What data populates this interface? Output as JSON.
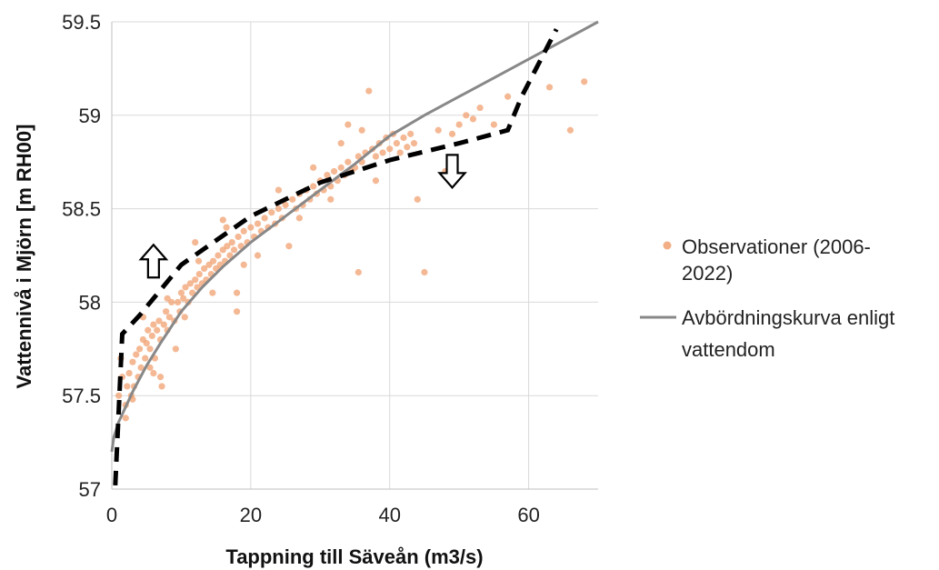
{
  "chart_data": {
    "type": "scatter",
    "xlabel": "Tappning till Säveån (m3/s)",
    "ylabel": "Vattennivå i Mjörn [m RH00]",
    "xlim": [
      0,
      70
    ],
    "ylim": [
      57,
      59.5
    ],
    "x_ticks": [
      "0",
      "20",
      "40",
      "60"
    ],
    "y_ticks": [
      "57",
      "57.5",
      "58",
      "58.5",
      "59",
      "59.5"
    ],
    "grid": true,
    "legend_position": "right",
    "series": [
      {
        "name_lines": [
          "Observationer (2006-",
          "2022)"
        ],
        "kind": "scatter",
        "color": "#f0a070",
        "points": [
          [
            1.0,
            57.5
          ],
          [
            1.3,
            57.7
          ],
          [
            1.5,
            57.6
          ],
          [
            2.0,
            57.45
          ],
          [
            2.2,
            57.55
          ],
          [
            2.5,
            57.62
          ],
          [
            2.8,
            57.5
          ],
          [
            3.0,
            57.68
          ],
          [
            3.2,
            57.55
          ],
          [
            3.5,
            57.72
          ],
          [
            3.8,
            57.6
          ],
          [
            4.0,
            57.75
          ],
          [
            4.2,
            57.65
          ],
          [
            4.5,
            57.8
          ],
          [
            4.8,
            57.7
          ],
          [
            5.0,
            57.78
          ],
          [
            5.2,
            57.85
          ],
          [
            5.5,
            57.75
          ],
          [
            5.8,
            57.82
          ],
          [
            6.0,
            57.88
          ],
          [
            6.2,
            57.7
          ],
          [
            6.5,
            57.85
          ],
          [
            6.8,
            57.9
          ],
          [
            7.0,
            57.8
          ],
          [
            7.2,
            57.55
          ],
          [
            7.5,
            57.88
          ],
          [
            7.8,
            57.95
          ],
          [
            8.0,
            57.85
          ],
          [
            8.3,
            57.92
          ],
          [
            8.6,
            58.0
          ],
          [
            9.0,
            57.9
          ],
          [
            9.2,
            57.75
          ],
          [
            9.5,
            58.0
          ],
          [
            9.8,
            57.95
          ],
          [
            10.0,
            58.05
          ],
          [
            10.3,
            58.02
          ],
          [
            10.6,
            58.08
          ],
          [
            11.0,
            58.0
          ],
          [
            11.3,
            58.1
          ],
          [
            11.6,
            58.05
          ],
          [
            12.0,
            58.12
          ],
          [
            12.3,
            58.08
          ],
          [
            12.6,
            58.15
          ],
          [
            13.0,
            58.1
          ],
          [
            13.3,
            58.18
          ],
          [
            13.6,
            58.12
          ],
          [
            14.0,
            58.2
          ],
          [
            14.3,
            58.15
          ],
          [
            14.6,
            58.22
          ],
          [
            15.0,
            58.18
          ],
          [
            15.3,
            58.25
          ],
          [
            15.6,
            58.2
          ],
          [
            16.0,
            58.28
          ],
          [
            16.3,
            58.22
          ],
          [
            16.6,
            58.3
          ],
          [
            17.0,
            58.25
          ],
          [
            17.3,
            58.32
          ],
          [
            17.6,
            58.28
          ],
          [
            18.0,
            58.05
          ],
          [
            18.0,
            57.95
          ],
          [
            18.2,
            58.35
          ],
          [
            18.6,
            58.3
          ],
          [
            19.0,
            58.38
          ],
          [
            19.5,
            58.32
          ],
          [
            20.0,
            58.4
          ],
          [
            20.5,
            58.35
          ],
          [
            21.0,
            58.42
          ],
          [
            21.5,
            58.38
          ],
          [
            22.0,
            58.45
          ],
          [
            22.5,
            58.4
          ],
          [
            23.0,
            58.48
          ],
          [
            23.5,
            58.42
          ],
          [
            24.0,
            58.5
          ],
          [
            24.5,
            58.45
          ],
          [
            25.0,
            58.52
          ],
          [
            25.5,
            58.3
          ],
          [
            26.0,
            58.55
          ],
          [
            26.5,
            58.5
          ],
          [
            27.0,
            58.58
          ],
          [
            27.5,
            58.52
          ],
          [
            28.0,
            58.6
          ],
          [
            28.5,
            58.55
          ],
          [
            29.0,
            58.62
          ],
          [
            29.5,
            58.58
          ],
          [
            30.0,
            58.65
          ],
          [
            30.5,
            58.6
          ],
          [
            31.0,
            58.68
          ],
          [
            31.5,
            58.62
          ],
          [
            32.0,
            58.7
          ],
          [
            32.5,
            58.65
          ],
          [
            33.0,
            58.72
          ],
          [
            33.5,
            58.68
          ],
          [
            34.0,
            58.75
          ],
          [
            34.5,
            58.7
          ],
          [
            35.0,
            58.72
          ],
          [
            35.5,
            58.78
          ],
          [
            36.0,
            58.75
          ],
          [
            36.5,
            58.8
          ],
          [
            37.0,
            59.13
          ],
          [
            37.5,
            58.82
          ],
          [
            38.0,
            58.78
          ],
          [
            38.5,
            58.85
          ],
          [
            39.0,
            58.8
          ],
          [
            39.5,
            58.88
          ],
          [
            40.0,
            58.82
          ],
          [
            40.5,
            58.9
          ],
          [
            41.0,
            58.85
          ],
          [
            41.5,
            58.8
          ],
          [
            42.0,
            58.88
          ],
          [
            42.5,
            58.83
          ],
          [
            43.0,
            58.9
          ],
          [
            43.5,
            58.85
          ],
          [
            44.0,
            58.55
          ],
          [
            45.0,
            58.16
          ],
          [
            47.0,
            58.92
          ],
          [
            48.0,
            58.7
          ],
          [
            49.0,
            58.9
          ],
          [
            50.0,
            58.95
          ],
          [
            51.0,
            59.0
          ],
          [
            52.0,
            58.98
          ],
          [
            53.0,
            59.04
          ],
          [
            55.0,
            58.95
          ],
          [
            57.0,
            59.1
          ],
          [
            63.0,
            59.15
          ],
          [
            66.0,
            58.92
          ],
          [
            68.0,
            59.18
          ],
          [
            35.5,
            58.16
          ],
          [
            2.0,
            57.38
          ],
          [
            4.5,
            57.92
          ],
          [
            6.0,
            57.62
          ],
          [
            8.0,
            58.02
          ],
          [
            10.5,
            57.92
          ],
          [
            12.5,
            58.22
          ],
          [
            14.5,
            58.05
          ],
          [
            16.5,
            58.4
          ],
          [
            19.0,
            58.2
          ],
          [
            21.0,
            58.25
          ],
          [
            24.0,
            58.6
          ],
          [
            27.0,
            58.45
          ],
          [
            29.0,
            58.72
          ],
          [
            31.5,
            58.55
          ],
          [
            33.0,
            58.85
          ],
          [
            36.0,
            58.92
          ],
          [
            38.0,
            58.65
          ],
          [
            34.0,
            58.95
          ],
          [
            12.0,
            58.32
          ],
          [
            16.0,
            58.44
          ],
          [
            7.0,
            57.6
          ],
          [
            3.0,
            57.48
          ],
          [
            5.5,
            57.65
          ]
        ]
      },
      {
        "name_lines": [
          "Avbördningskurva enligt",
          "vattendom"
        ],
        "kind": "line",
        "color": "#888888",
        "x": [
          0,
          0.3,
          1,
          2,
          3,
          5,
          7,
          10,
          13,
          16,
          20,
          25,
          30,
          35,
          40,
          45,
          50,
          55,
          60,
          65,
          70
        ],
        "y": [
          57.2,
          57.28,
          57.36,
          57.44,
          57.52,
          57.66,
          57.78,
          57.95,
          58.08,
          58.19,
          58.32,
          58.46,
          58.6,
          58.74,
          58.89,
          59.0,
          59.1,
          59.2,
          59.3,
          59.4,
          59.5
        ]
      },
      {
        "kind": "dashed",
        "color": "#000000",
        "x": [
          0.5,
          1.5,
          4,
          10,
          20,
          30,
          40,
          50,
          57,
          59,
          64
        ],
        "y": [
          57.02,
          57.83,
          57.93,
          58.2,
          58.46,
          58.64,
          58.76,
          58.85,
          58.92,
          59.1,
          59.46
        ]
      }
    ],
    "annotations": [
      {
        "kind": "arrow-up",
        "x": 6,
        "y": 58.2
      },
      {
        "kind": "arrow-down",
        "x": 49,
        "y": 58.72
      }
    ]
  }
}
